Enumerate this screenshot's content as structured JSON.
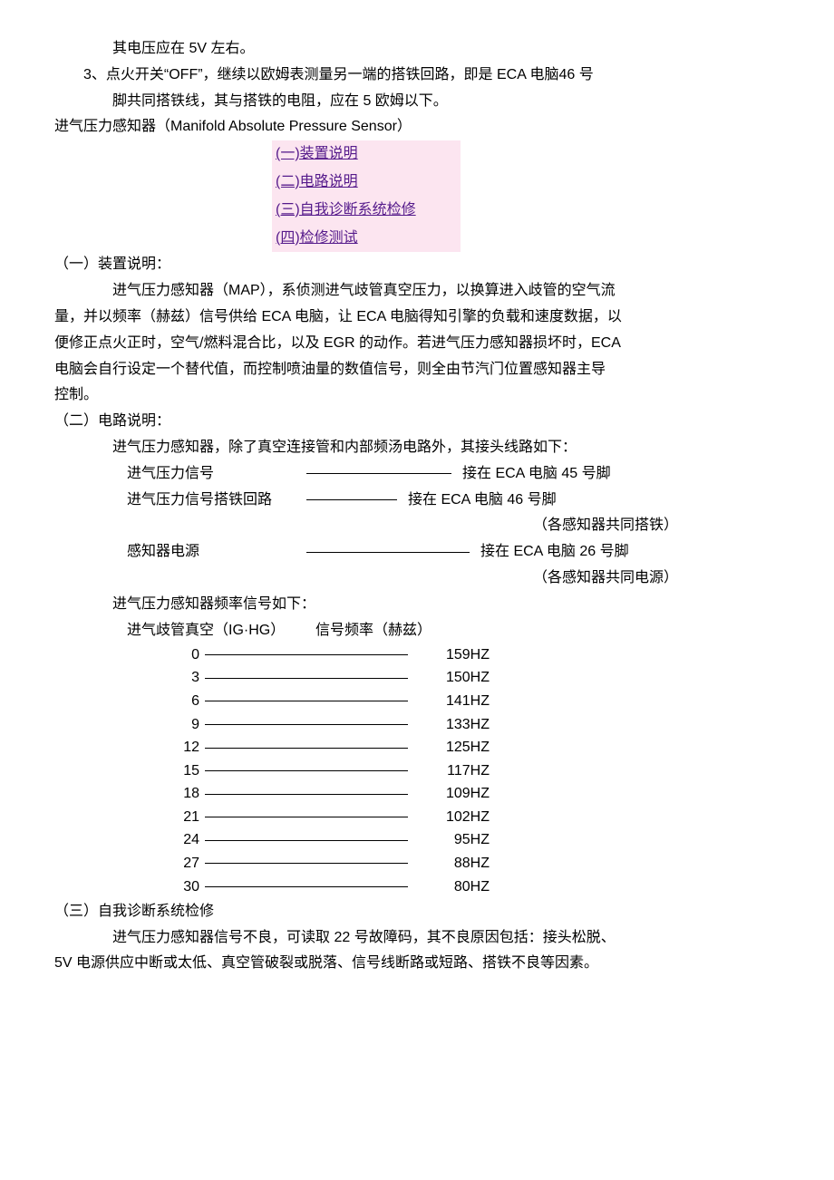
{
  "intro": {
    "line1": "其电压应在 5V 左右。",
    "line2": "3、点火开关“OFF”，继续以欧姆表测量另一端的搭铁回路，即是 ECA 电脑46 号",
    "line3": "脚共同搭铁线，其与搭铁的电阻，应在 5 欧姆以下。"
  },
  "title": "进气压力感知器（Manifold Absolute Pressure Sensor）",
  "toc": [
    "(一)装置说明",
    "(二)电路说明",
    "(三)自我诊断系统检修",
    "(四)检修测试"
  ],
  "section1": {
    "heading": "（一）装置说明：",
    "p1": "进气压力感知器（MAP），系侦测进气歧管真空压力，以换算进入歧管的空气流",
    "p2": "量，并以频率（赫兹）信号供给 ECA 电脑，让 ECA 电脑得知引擎的负载和速度数据，以",
    "p3": "便修正点火正时，空气/燃料混合比，以及 EGR 的动作。若进气压力感知器损坏时，ECA",
    "p4": "电脑会自行设定一个替代值，而控制喷油量的数值信号，则全由节汽门位置感知器主导",
    "p5": "控制。"
  },
  "section2": {
    "heading": "（二）电路说明：",
    "p1": "进气压力感知器，除了真空连接管和内部频汤电路外，其接头线路如下：",
    "circuits": [
      {
        "label": "进气压力信号",
        "line_w": 160,
        "dest": "接在 ECA 电脑 45 号脚",
        "note": ""
      },
      {
        "label": "进气压力信号搭铁回路",
        "line_w": 100,
        "dest": "接在 ECA 电脑 46 号脚",
        "note": "（各感知器共同搭铁）"
      },
      {
        "label": "感知器电源",
        "line_w": 180,
        "dest": "接在 ECA 电脑 26 号脚",
        "note": "（各感知器共同电源）"
      }
    ],
    "freq_heading": "进气压力感知器频率信号如下：",
    "freq_col1": "进气歧管真空（IG·HG）",
    "freq_col2": "信号频率（赫兹）",
    "freq_data": [
      {
        "vac": "0",
        "hz": "159HZ"
      },
      {
        "vac": "3",
        "hz": "150HZ"
      },
      {
        "vac": "6",
        "hz": "141HZ"
      },
      {
        "vac": "9",
        "hz": "133HZ"
      },
      {
        "vac": "12",
        "hz": "125HZ"
      },
      {
        "vac": "15",
        "hz": "117HZ"
      },
      {
        "vac": "18",
        "hz": "109HZ"
      },
      {
        "vac": "21",
        "hz": "102HZ"
      },
      {
        "vac": "24",
        "hz": "95HZ"
      },
      {
        "vac": "27",
        "hz": "88HZ"
      },
      {
        "vac": "30",
        "hz": "80HZ"
      }
    ]
  },
  "section3": {
    "heading": "（三）自我诊断系统检修",
    "p1": "进气压力感知器信号不良，可读取 22 号故障码，其不良原因包括：接头松脱、",
    "p2": "5V 电源供应中断或太低、真空管破裂或脱落、信号线断路或短路、搭铁不良等因素。"
  }
}
